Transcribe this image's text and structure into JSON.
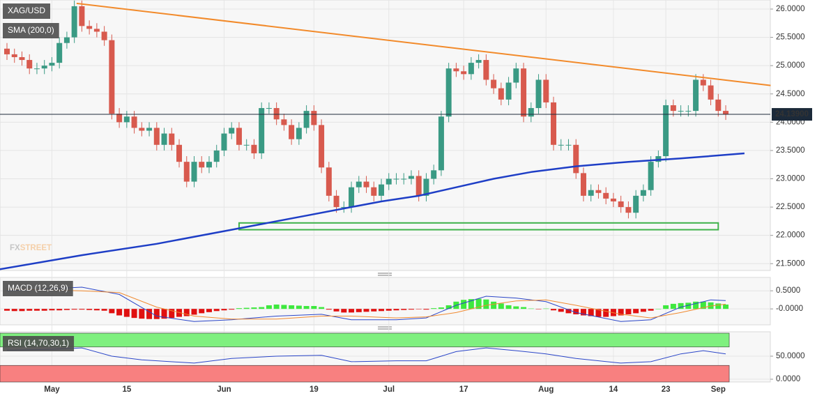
{
  "chart_data": [
    {
      "type": "candlestick",
      "title": "XAG/USD",
      "categories": [
        null,
        null,
        null,
        null,
        null,
        null,
        "May",
        null,
        null,
        null,
        null,
        null,
        null,
        null,
        null,
        null,
        "15",
        null,
        null,
        null,
        null,
        null,
        null,
        null,
        null,
        null,
        null,
        null,
        null,
        "Jun",
        null,
        null,
        null,
        null,
        null,
        null,
        null,
        null,
        null,
        null,
        null,
        "19",
        null,
        null,
        null,
        null,
        null,
        null,
        null,
        null,
        null,
        "Jul",
        null,
        null,
        null,
        null,
        null,
        null,
        null,
        null,
        null,
        "17",
        null,
        null,
        null,
        null,
        null,
        null,
        null,
        null,
        null,
        null,
        "Aug",
        null,
        null,
        null,
        null,
        null,
        null,
        null,
        null,
        "14",
        null,
        null,
        null,
        null,
        null,
        null,
        "23",
        null,
        null,
        null,
        null,
        null,
        null,
        "Sep",
        null
      ],
      "open": [
        25.3,
        25.2,
        25.15,
        25.1,
        24.95,
        24.95,
        25.0,
        25.05,
        25.4,
        25.5,
        26.05,
        25.7,
        25.65,
        25.6,
        25.45,
        24.15,
        24.0,
        24.1,
        23.9,
        23.85,
        23.9,
        23.6,
        23.8,
        23.6,
        23.3,
        22.95,
        23.3,
        23.2,
        23.3,
        23.5,
        23.8,
        23.9,
        23.6,
        23.6,
        23.45,
        24.25,
        24.25,
        24.05,
        23.95,
        23.7,
        23.9,
        24.2,
        23.95,
        23.2,
        22.7,
        22.5,
        22.5,
        22.85,
        22.95,
        22.85,
        22.7,
        22.9,
        23.0,
        23.0,
        23.0,
        23.05,
        22.7,
        23.0,
        23.15,
        24.1,
        24.95,
        24.9,
        24.85,
        25.05,
        25.1,
        24.75,
        24.6,
        24.4,
        24.7,
        24.95,
        24.1,
        24.25,
        24.75,
        24.35,
        23.6,
        23.6,
        23.6,
        23.1,
        22.7,
        22.8,
        22.75,
        22.65,
        22.6,
        22.5,
        22.4,
        22.7,
        22.8,
        23.3,
        23.4,
        24.3,
        24.2,
        24.2,
        24.2,
        24.75,
        24.65,
        24.4,
        24.2
      ],
      "high": [
        25.4,
        25.3,
        25.25,
        25.2,
        25.05,
        25.1,
        25.15,
        25.5,
        25.6,
        26.15,
        26.15,
        25.8,
        25.75,
        25.7,
        25.55,
        24.25,
        24.2,
        24.2,
        24.0,
        24.0,
        24.0,
        23.9,
        23.9,
        23.7,
        23.4,
        23.4,
        23.4,
        23.4,
        23.6,
        23.9,
        24.0,
        24.0,
        23.7,
        23.7,
        24.35,
        24.35,
        24.35,
        24.15,
        24.05,
        24.0,
        24.3,
        24.3,
        24.05,
        23.3,
        22.8,
        22.6,
        22.95,
        23.05,
        23.05,
        22.95,
        23.0,
        23.1,
        23.1,
        23.1,
        23.15,
        23.15,
        23.1,
        23.25,
        24.2,
        25.05,
        25.05,
        25.0,
        25.15,
        25.2,
        25.2,
        24.85,
        24.7,
        24.8,
        25.05,
        25.05,
        24.35,
        24.85,
        24.85,
        24.45,
        23.7,
        23.7,
        23.7,
        23.2,
        22.9,
        22.9,
        22.85,
        22.75,
        22.7,
        22.6,
        22.8,
        22.9,
        23.4,
        23.5,
        24.4,
        24.4,
        24.3,
        24.3,
        24.85,
        24.85,
        24.75,
        24.5,
        24.3
      ],
      "low": [
        25.1,
        25.05,
        25.0,
        24.85,
        24.85,
        24.85,
        24.9,
        24.95,
        25.3,
        25.4,
        25.6,
        25.55,
        25.5,
        25.35,
        24.05,
        23.9,
        23.9,
        23.8,
        23.75,
        23.75,
        23.5,
        23.5,
        23.5,
        23.2,
        22.85,
        22.85,
        23.1,
        23.1,
        23.2,
        23.4,
        23.7,
        23.5,
        23.5,
        23.35,
        23.35,
        24.15,
        23.95,
        23.85,
        23.6,
        23.6,
        23.8,
        23.85,
        23.1,
        22.6,
        22.4,
        22.4,
        22.4,
        22.75,
        22.75,
        22.6,
        22.6,
        22.8,
        22.9,
        22.9,
        22.9,
        22.6,
        22.6,
        22.9,
        23.05,
        24.0,
        24.8,
        24.75,
        24.75,
        24.95,
        24.65,
        24.5,
        24.3,
        24.3,
        24.6,
        24.0,
        24.0,
        24.15,
        24.25,
        23.5,
        23.5,
        23.5,
        23.0,
        22.6,
        22.6,
        22.65,
        22.55,
        22.5,
        22.4,
        22.3,
        22.3,
        22.6,
        22.7,
        23.2,
        23.3,
        24.1,
        24.1,
        24.1,
        24.1,
        24.55,
        24.3,
        24.1,
        24.04
      ],
      "close": [
        25.2,
        25.15,
        25.1,
        24.95,
        24.95,
        25.0,
        25.05,
        25.4,
        25.5,
        26.05,
        25.7,
        25.65,
        25.6,
        25.45,
        24.15,
        24.0,
        24.1,
        23.9,
        23.85,
        23.9,
        23.6,
        23.8,
        23.6,
        23.3,
        22.95,
        23.3,
        23.2,
        23.3,
        23.5,
        23.8,
        23.9,
        23.6,
        23.6,
        23.45,
        24.25,
        24.25,
        24.05,
        23.95,
        23.7,
        23.9,
        24.2,
        23.95,
        23.2,
        22.7,
        22.5,
        22.5,
        22.85,
        22.95,
        22.85,
        22.7,
        22.9,
        23.0,
        23.0,
        23.0,
        23.05,
        22.7,
        23.0,
        23.15,
        24.1,
        24.95,
        24.9,
        24.85,
        25.05,
        25.1,
        24.75,
        24.6,
        24.4,
        24.7,
        24.95,
        24.1,
        24.25,
        24.75,
        24.35,
        23.6,
        23.6,
        23.6,
        23.1,
        22.7,
        22.8,
        22.75,
        22.65,
        22.6,
        22.5,
        22.4,
        22.7,
        22.8,
        23.3,
        23.4,
        24.3,
        24.2,
        24.2,
        24.2,
        24.75,
        24.65,
        24.4,
        24.2,
        24.14
      ],
      "up_color": "#3a9a84",
      "down_color": "#d85a4e",
      "ylim": [
        21.38,
        26.16
      ],
      "yticks": [
        {
          "value": 26,
          "label": "26.0000"
        },
        {
          "value": 25.5,
          "label": "25.5000"
        },
        {
          "value": 25,
          "label": "25.0000"
        },
        {
          "value": 24.5,
          "label": "24.5000"
        },
        {
          "value": 24,
          "label": "24.0000"
        },
        {
          "value": 23.5,
          "label": "23.5000"
        },
        {
          "value": 23,
          "label": "23.0000"
        },
        {
          "value": 22.5,
          "label": "22.5000"
        },
        {
          "value": 22,
          "label": "22.0000"
        },
        {
          "value": 21.5,
          "label": "21.5000"
        }
      ],
      "grid": true,
      "overlays": [
        {
          "name": "SMA (200,0)",
          "color": "#1e3ec6",
          "x": [
            -1,
            10,
            20,
            30,
            40,
            44,
            50,
            55,
            60,
            65,
            70,
            76,
            83,
            90,
            98.5
          ],
          "values": [
            21.4,
            21.65,
            21.85,
            22.1,
            22.35,
            22.45,
            22.6,
            22.7,
            22.85,
            23.0,
            23.12,
            23.22,
            23.3,
            23.36,
            23.45
          ]
        }
      ],
      "trendline": {
        "color": "#f28a2a",
        "x": [
          9.3,
          102
        ],
        "values": [
          26.1,
          24.65
        ]
      },
      "zone": {
        "color": "#3fb24a",
        "x": [
          31,
          95
        ],
        "values": [
          22.1,
          22.22
        ]
      },
      "last_price": {
        "value": 24.139,
        "label": "24.13900"
      },
      "watermark": [
        "FX",
        "STREET"
      ]
    },
    {
      "type": "macd",
      "title": "MACD (12,26,9)",
      "histogram": [
        -0.05,
        -0.06,
        -0.06,
        -0.05,
        -0.05,
        -0.05,
        -0.04,
        -0.04,
        -0.03,
        -0.02,
        -0.02,
        -0.03,
        -0.04,
        -0.05,
        -0.12,
        -0.18,
        -0.22,
        -0.25,
        -0.27,
        -0.28,
        -0.28,
        -0.27,
        -0.25,
        -0.22,
        -0.2,
        -0.16,
        -0.12,
        -0.09,
        -0.06,
        -0.04,
        -0.02,
        0.02,
        0.03,
        0.04,
        0.05,
        0.1,
        0.12,
        0.11,
        0.1,
        0.09,
        0.08,
        0.08,
        0.05,
        -0.02,
        -0.07,
        -0.1,
        -0.1,
        -0.09,
        -0.08,
        -0.07,
        -0.06,
        -0.05,
        -0.04,
        -0.03,
        -0.02,
        -0.01,
        -0.02,
        0.02,
        0.04,
        0.1,
        0.2,
        0.25,
        0.27,
        0.28,
        0.26,
        0.2,
        0.15,
        0.1,
        0.07,
        0.05,
        0.01,
        -0.01,
        0.01,
        -0.04,
        -0.08,
        -0.12,
        -0.15,
        -0.18,
        -0.2,
        -0.22,
        -0.22,
        -0.2,
        -0.18,
        -0.15,
        -0.12,
        -0.08,
        -0.05,
        0.0,
        0.1,
        0.14,
        0.16,
        0.17,
        0.2,
        0.2,
        0.18,
        0.15,
        0.12
      ],
      "up_color": "#3ee83e",
      "down_color": "#e01010",
      "series": [
        {
          "color": "#2a45c8",
          "x": [
            0,
            10,
            15,
            20,
            25,
            30,
            36,
            42,
            46,
            52,
            56,
            60,
            64,
            68,
            72,
            76,
            82,
            86,
            90,
            94,
            96
          ],
          "values": [
            0.5,
            0.6,
            0.4,
            -0.2,
            -0.35,
            -0.3,
            -0.2,
            -0.15,
            -0.3,
            -0.3,
            -0.25,
            0.1,
            0.35,
            0.3,
            0.2,
            -0.1,
            -0.35,
            -0.3,
            0.05,
            0.25,
            0.23
          ]
        },
        {
          "color": "#f08a30",
          "x": [
            0,
            10,
            15,
            20,
            25,
            30,
            36,
            42,
            46,
            52,
            56,
            60,
            64,
            68,
            72,
            76,
            82,
            86,
            90,
            94,
            96
          ],
          "values": [
            0.55,
            0.5,
            0.45,
            0.05,
            -0.2,
            -0.28,
            -0.28,
            -0.2,
            -0.2,
            -0.25,
            -0.22,
            -0.1,
            0.1,
            0.22,
            0.25,
            0.1,
            -0.15,
            -0.25,
            -0.1,
            0.08,
            0.13
          ]
        }
      ],
      "ylim": [
        -0.44,
        0.87
      ],
      "yticks": [
        {
          "value": 0.5,
          "label": "0.5000"
        },
        {
          "value": 0,
          "label": "-0.0000"
        }
      ]
    },
    {
      "type": "line",
      "title": "RSI (14,70,30,1)",
      "bands": [
        {
          "range": [
            70,
            100
          ],
          "color": "#7ff07f"
        },
        {
          "range": [
            -6,
            30
          ],
          "color": "#f88080"
        }
      ],
      "series": [
        {
          "color": "#2a45c8",
          "x": [
            0,
            6,
            10,
            14,
            18,
            25,
            30,
            36,
            42,
            46,
            52,
            56,
            60,
            64,
            68,
            72,
            76,
            82,
            86,
            90,
            93,
            96
          ],
          "values": [
            63,
            65,
            68,
            50,
            42,
            35,
            45,
            50,
            52,
            38,
            40,
            40,
            60,
            68,
            62,
            55,
            45,
            35,
            38,
            55,
            62,
            55
          ]
        }
      ],
      "ylim": [
        -6,
        103
      ],
      "yticks": [
        {
          "value": 50,
          "label": "50.0000"
        },
        {
          "value": 0,
          "label": "0.0000"
        }
      ]
    }
  ]
}
